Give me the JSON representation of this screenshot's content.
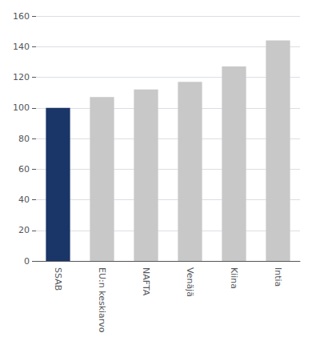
{
  "chart_data": {
    "type": "bar",
    "categories": [
      "SSAB",
      "EU:n keskiarvo",
      "NAFTA",
      "Venäjä",
      "Kiina",
      "Intia"
    ],
    "values": [
      100,
      107,
      112,
      117,
      127,
      144
    ],
    "colors": [
      "#1a3668",
      "#c8c8c8",
      "#c8c8c8",
      "#c8c8c8",
      "#c8c8c8",
      "#c8c8c8"
    ],
    "ylim": [
      0,
      160
    ],
    "yticks": [
      0,
      20,
      40,
      60,
      80,
      100,
      120,
      140,
      160
    ],
    "grid": true
  }
}
